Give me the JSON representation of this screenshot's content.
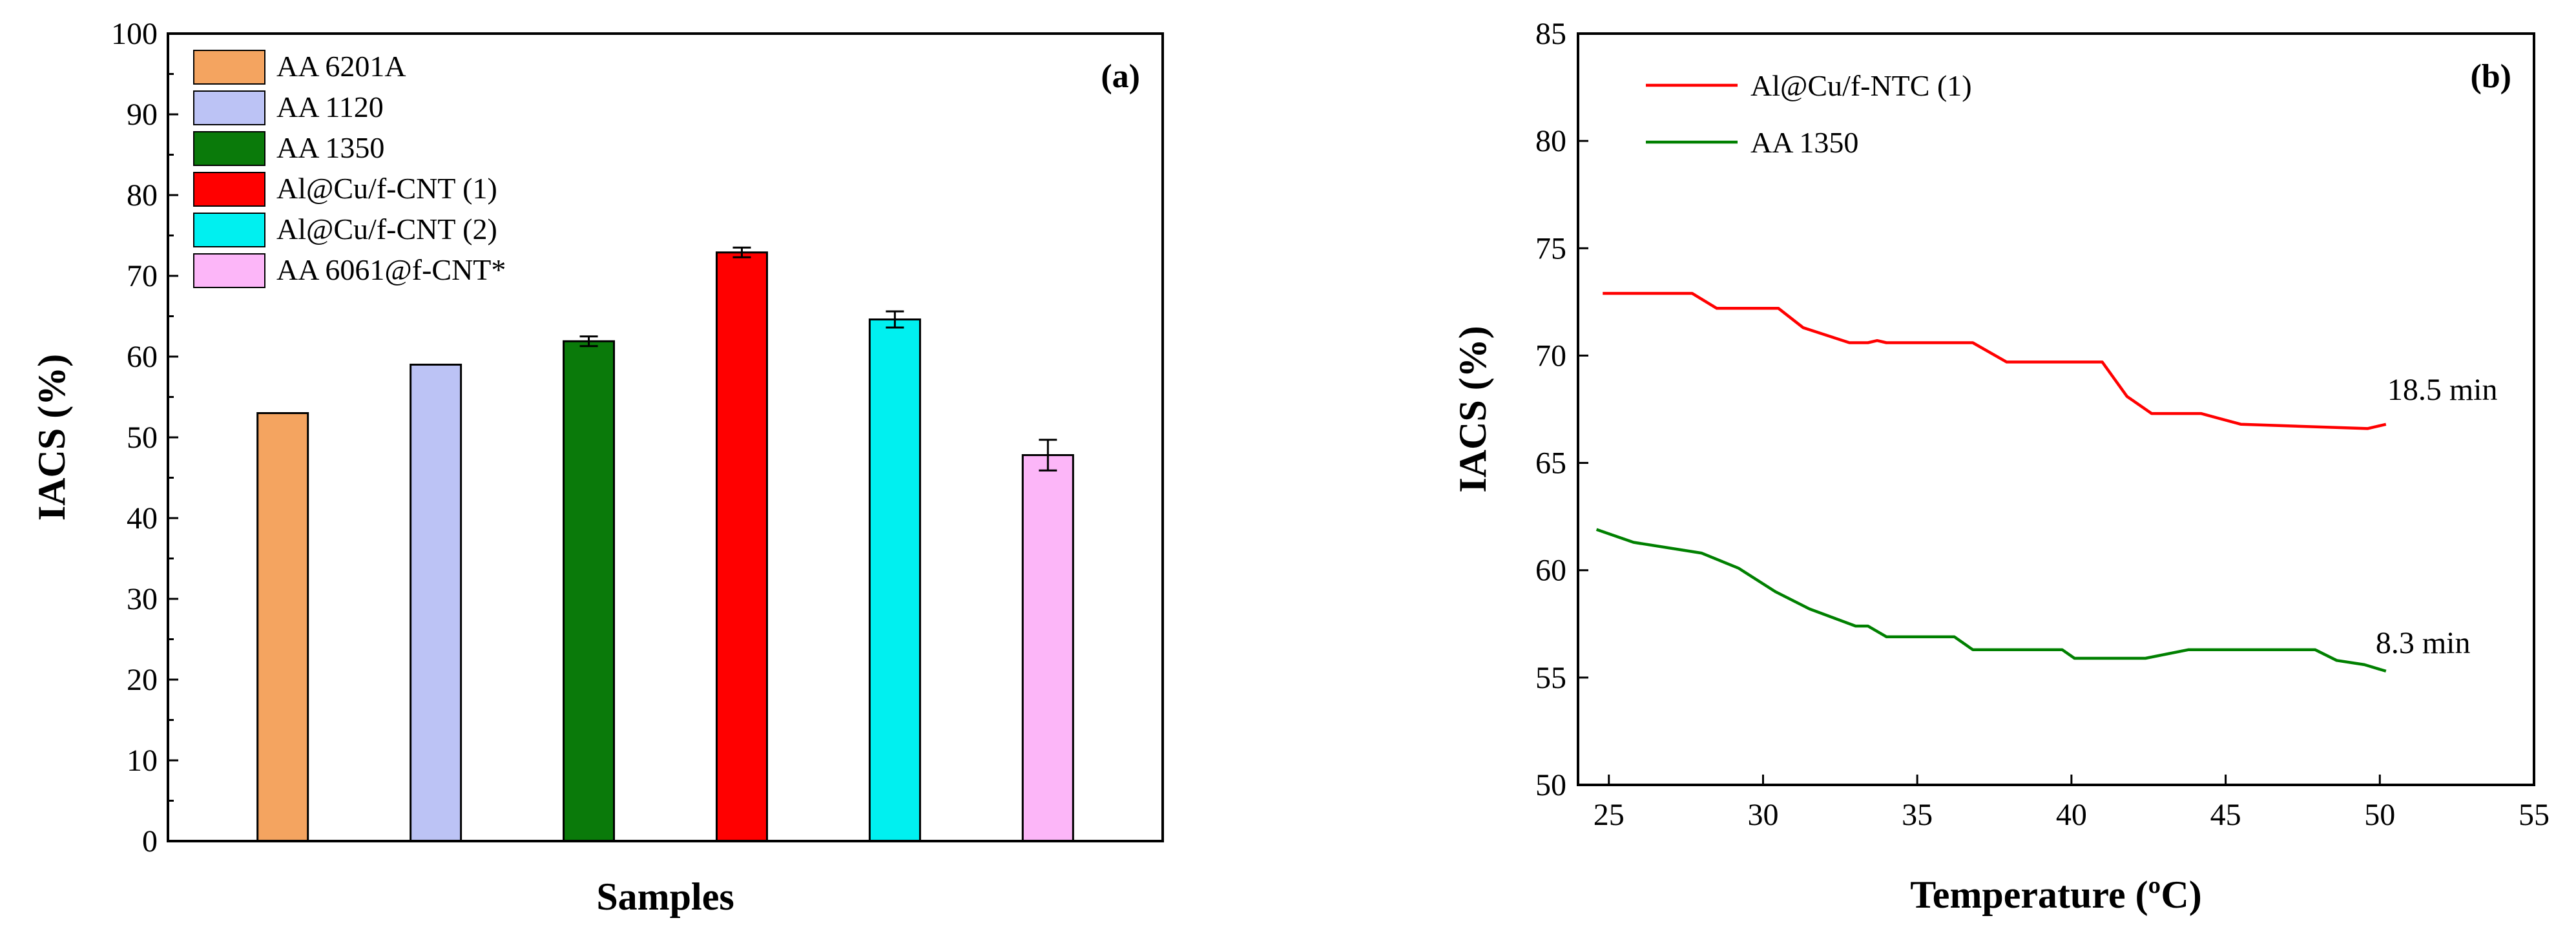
{
  "chart_data": [
    {
      "type": "bar",
      "panel_label": "(a)",
      "title": "",
      "xlabel": "Samples",
      "ylabel": "IACS (%)",
      "ylim": [
        0,
        100
      ],
      "yticks": [
        0,
        10,
        20,
        30,
        40,
        50,
        60,
        70,
        80,
        90,
        100
      ],
      "legend_position": "top-left",
      "bars": [
        {
          "name": "AA 6201A",
          "value": 53.0,
          "error": 0,
          "color": "#f4a460"
        },
        {
          "name": "AA 1120",
          "value": 59.0,
          "error": 0,
          "color": "#bcc3f5"
        },
        {
          "name": "AA 1350",
          "value": 61.9,
          "error": 0.6,
          "color": "#0a7a0a"
        },
        {
          "name": "Al@Cu/f-CNT (1)",
          "value": 72.9,
          "error": 0.6,
          "color": "#ff0000"
        },
        {
          "name": "Al@Cu/f-CNT (2)",
          "value": 64.6,
          "error": 1.0,
          "color": "#00f0f0"
        },
        {
          "name": "AA 6061@f-CNT*",
          "value": 47.8,
          "error": 1.9,
          "color": "#fcb6f8"
        }
      ]
    },
    {
      "type": "line",
      "panel_label": "(b)",
      "title": "",
      "xlabel": "Temperature (ºC)",
      "ylabel": "IACS (%)",
      "xlim": [
        24,
        55
      ],
      "ylim": [
        50,
        85
      ],
      "xticks": [
        25,
        30,
        35,
        40,
        45,
        50,
        55
      ],
      "yticks": [
        50,
        55,
        60,
        65,
        70,
        75,
        80,
        85
      ],
      "legend_position": "top-left",
      "series": [
        {
          "name": "Al@Cu/f-NTC (1)",
          "color": "#ff0000",
          "x": [
            24.8,
            27.7,
            28.5,
            30.5,
            31.3,
            32.8,
            33.4,
            33.7,
            34.0,
            36.8,
            37.9,
            41.0,
            41.8,
            42.6,
            44.2,
            45.5,
            49.6,
            50.2
          ],
          "y": [
            72.9,
            72.9,
            72.2,
            72.2,
            71.3,
            70.6,
            70.6,
            70.7,
            70.6,
            70.6,
            69.7,
            69.7,
            68.1,
            67.3,
            67.3,
            66.8,
            66.6,
            66.8
          ]
        },
        {
          "name": "AA 1350",
          "color": "#008000",
          "x": [
            24.6,
            25.8,
            28.0,
            29.2,
            30.4,
            31.5,
            33.0,
            33.4,
            34.0,
            36.2,
            36.8,
            39.7,
            40.1,
            42.4,
            43.8,
            47.9,
            48.6,
            49.5,
            50.2
          ],
          "y": [
            61.9,
            61.3,
            60.8,
            60.1,
            59.0,
            58.2,
            57.4,
            57.4,
            56.9,
            56.9,
            56.3,
            56.3,
            55.9,
            55.9,
            56.3,
            56.3,
            55.8,
            55.6,
            55.3
          ]
        }
      ],
      "annotations": [
        {
          "text": "18.5 min",
          "x": 50.2,
          "y": 66.8
        },
        {
          "text": "8.3 min",
          "x": 50.2,
          "y": 55.3
        }
      ]
    }
  ]
}
